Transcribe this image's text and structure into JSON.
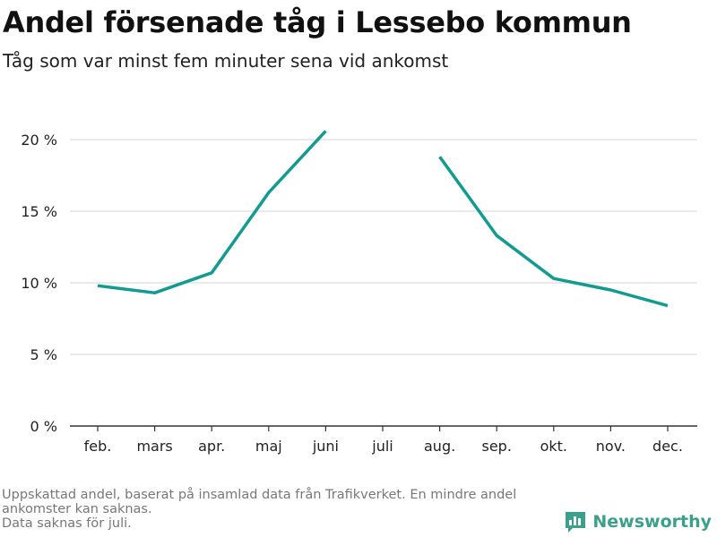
{
  "header": {
    "title": "Andel försenade tåg i Lessebo kommun",
    "subtitle": "Tåg som var minst fem minuter sena vid ankomst"
  },
  "footer": {
    "note_lines": [
      "Uppskattad andel, baserat på insamlad data från Trafikverket. En mindre andel",
      "ankomster kan saknas.",
      "Data saknas för juli."
    ],
    "brand": "Newsworthy",
    "brand_icon": "bar-chart-speech-bubble-icon"
  },
  "colors": {
    "line": "#129c91",
    "grid": "#dddddd",
    "axis": "#333333",
    "brand": "#3aa08c"
  },
  "chart_data": {
    "type": "line",
    "title": "Andel försenade tåg i Lessebo kommun",
    "subtitle": "Tåg som var minst fem minuter sena vid ankomst",
    "categories": [
      "feb.",
      "mars",
      "apr.",
      "maj",
      "juni",
      "juli",
      "aug.",
      "sep.",
      "okt.",
      "nov.",
      "dec."
    ],
    "series": [
      {
        "values": [
          9.8,
          9.3,
          10.7,
          16.3,
          20.6,
          null,
          18.8,
          13.3,
          10.3,
          9.5,
          8.4
        ]
      }
    ],
    "y_ticks": [
      0,
      5,
      10,
      15,
      20
    ],
    "y_tick_labels": [
      "0 %",
      "5 %",
      "10 %",
      "15 %",
      "20 %"
    ],
    "ylim": [
      0,
      22
    ],
    "grid": true,
    "xlabel": "",
    "ylabel": ""
  }
}
